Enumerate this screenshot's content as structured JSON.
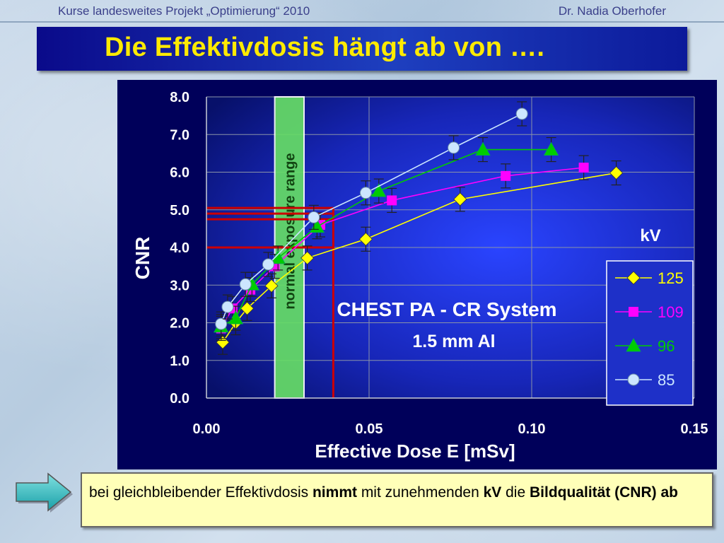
{
  "header": {
    "left_text": "Kurse landesweites Projekt „Optimierung“ 2010",
    "right_text": "Dr. Nadia Oberhofer"
  },
  "slide_title": "Die Effektivdosis hängt ab von ….",
  "chart_data": {
    "type": "scatter",
    "xlabel": "Effective Dose E [mSv]",
    "ylabel": "CNR",
    "xlim": [
      0,
      0.15
    ],
    "ylim": [
      0,
      8
    ],
    "x_ticks": [
      "0.00",
      "0.05",
      "0.10",
      "0.15"
    ],
    "y_ticks": [
      "0.0",
      "1.0",
      "2.0",
      "3.0",
      "4.0",
      "5.0",
      "6.0",
      "7.0",
      "8.0"
    ],
    "grid": true,
    "legend_title": "kV",
    "legend_position": "bottom-right",
    "annotation_lines": [
      "CHEST PA - CR System",
      "1.5 mm Al"
    ],
    "band_label": "normal exposure range",
    "band_x_range": [
      0.021,
      0.03
    ],
    "reference_lines": {
      "x": 0.039,
      "y": [
        4.0,
        4.75,
        4.9,
        5.05
      ]
    },
    "series": [
      {
        "name": "125",
        "color": "#ffff00",
        "marker": "diamond",
        "points": [
          [
            0.005,
            1.48
          ],
          [
            0.009,
            2.0
          ],
          [
            0.0125,
            2.38
          ],
          [
            0.02,
            2.98
          ],
          [
            0.031,
            3.72
          ],
          [
            0.049,
            4.22
          ],
          [
            0.078,
            5.28
          ],
          [
            0.126,
            5.98
          ]
        ]
      },
      {
        "name": "109",
        "color": "#ff00ff",
        "marker": "square",
        "points": [
          [
            0.0045,
            1.85
          ],
          [
            0.008,
            2.38
          ],
          [
            0.0135,
            2.88
          ],
          [
            0.021,
            3.5
          ],
          [
            0.035,
            4.6
          ],
          [
            0.057,
            5.25
          ],
          [
            0.092,
            5.9
          ],
          [
            0.116,
            6.12
          ]
        ]
      },
      {
        "name": "96",
        "color": "#00cc00",
        "marker": "triangle",
        "points": [
          [
            0.0045,
            1.9
          ],
          [
            0.009,
            2.12
          ],
          [
            0.014,
            3.02
          ],
          [
            0.022,
            3.72
          ],
          [
            0.034,
            4.55
          ],
          [
            0.053,
            5.5
          ],
          [
            0.085,
            6.6
          ],
          [
            0.106,
            6.6
          ]
        ]
      },
      {
        "name": "85",
        "color": "#cce6ff",
        "marker": "circle",
        "points": [
          [
            0.0045,
            1.97
          ],
          [
            0.0065,
            2.42
          ],
          [
            0.012,
            3.02
          ],
          [
            0.019,
            3.55
          ],
          [
            0.033,
            4.8
          ],
          [
            0.049,
            5.45
          ],
          [
            0.076,
            6.65
          ],
          [
            0.097,
            7.55
          ]
        ]
      }
    ]
  },
  "footnote": {
    "part1": "bei gleichbleibender Effektivdosis ",
    "bold1": "nimmt",
    "part2": " mit zunehmenden ",
    "bold2": "kV",
    "part3": " die ",
    "bold3": "Bildqualität (CNR) ab"
  },
  "colors": {
    "title_text": "#ffea00",
    "chart_bg_outer": "#000066",
    "chart_bg_inner": "#1a2ed0",
    "reference_line": "#cc0000",
    "band_fill": "#66dd66"
  }
}
